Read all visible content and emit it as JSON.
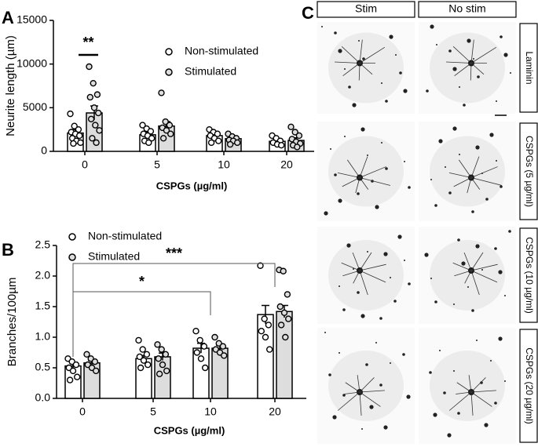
{
  "chart_data": [
    {
      "type": "bar",
      "panel": "A",
      "xlabel": "CSPGs (µg/ml)",
      "ylabel": "Neurite length (µm)",
      "categories": [
        "0",
        "5",
        "10",
        "20"
      ],
      "ylim": [
        0,
        15000
      ],
      "yticks": [
        0,
        5000,
        10000,
        15000
      ],
      "annotations": [
        "**"
      ],
      "series": [
        {
          "name": "Non-stimulated",
          "color": "#ffffff",
          "values": [
            2100,
            1900,
            1800,
            1150
          ],
          "errors": [
            400,
            300,
            200,
            200
          ],
          "points": [
            [
              4300,
              2900,
              2500,
              2200,
              2000,
              1800,
              1500,
              1200,
              1000,
              900
            ],
            [
              3000,
              2600,
              2300,
              2000,
              1800,
              1500,
              1200,
              1000
            ],
            [
              2500,
              2200,
              2000,
              1800,
              1500,
              1200,
              1000
            ],
            [
              1800,
              1500,
              1200,
              1000,
              800,
              700
            ]
          ]
        },
        {
          "name": "Stimulated",
          "color": "#dddddd",
          "values": [
            4400,
            2900,
            1450,
            1250
          ],
          "errors": [
            800,
            500,
            200,
            300
          ],
          "points": [
            [
              9700,
              7800,
              6500,
              6200,
              5000,
              4400,
              3700,
              3000,
              2400,
              1500,
              1000
            ],
            [
              6700,
              3400,
              3000,
              2700,
              2400,
              2000,
              1500
            ],
            [
              2000,
              1700,
              1500,
              1300,
              1200,
              1000,
              800
            ],
            [
              2800,
              2200,
              1800,
              1400,
              1100,
              900,
              700,
              500
            ]
          ]
        }
      ]
    },
    {
      "type": "bar",
      "panel": "B",
      "xlabel": "CSPGs (µg/ml)",
      "ylabel": "Branches/100µm",
      "categories": [
        "0",
        "5",
        "10",
        "20"
      ],
      "ylim": [
        0,
        2.5
      ],
      "yticks": [
        {
          "value": 0,
          "label": "0.0"
        },
        {
          "value": 0.5,
          "label": "0.5"
        },
        {
          "value": 1,
          "label": "1.0"
        },
        {
          "value": 1.5,
          "label": "1.5"
        },
        {
          "value": 2,
          "label": "2.0"
        },
        {
          "value": 2.5,
          "label": "2.5"
        }
      ],
      "annotations": [
        "*",
        "***"
      ],
      "series": [
        {
          "name": "Non-stimulated",
          "color": "#ffffff",
          "values": [
            0.53,
            0.65,
            0.82,
            1.37
          ],
          "errors": [
            0.05,
            0.05,
            0.08,
            0.15
          ],
          "points": [
            [
              0.65,
              0.6,
              0.55,
              0.5,
              0.45,
              0.35,
              0.3
            ],
            [
              0.95,
              0.8,
              0.72,
              0.68,
              0.62,
              0.55,
              0.5
            ],
            [
              1.1,
              0.95,
              0.85,
              0.75,
              0.65,
              0.5
            ],
            [
              2.17,
              1.3,
              1.2,
              1.1,
              1.0,
              0.8
            ]
          ]
        },
        {
          "name": "Stimulated",
          "color": "#dddddd",
          "values": [
            0.58,
            0.68,
            0.82,
            1.42
          ],
          "errors": [
            0.04,
            0.06,
            0.05,
            0.1
          ],
          "points": [
            [
              0.72,
              0.65,
              0.6,
              0.55,
              0.5,
              0.45
            ],
            [
              0.88,
              0.8,
              0.72,
              0.65,
              0.55,
              0.45,
              0.4
            ],
            [
              1.0,
              0.9,
              0.85,
              0.8,
              0.75,
              0.7
            ],
            [
              2.1,
              2.08,
              1.7,
              1.5,
              1.4,
              1.3,
              1.2,
              1.0
            ]
          ]
        }
      ]
    }
  ],
  "panel_c": {
    "panel": "C",
    "columns": [
      "Stim",
      "No stim"
    ],
    "rows": [
      "Laminin",
      "CSPGs (5 µg/ml)",
      "CSPGs (10 µg/ml)",
      "CSPGs (20 µg/ml)"
    ]
  }
}
